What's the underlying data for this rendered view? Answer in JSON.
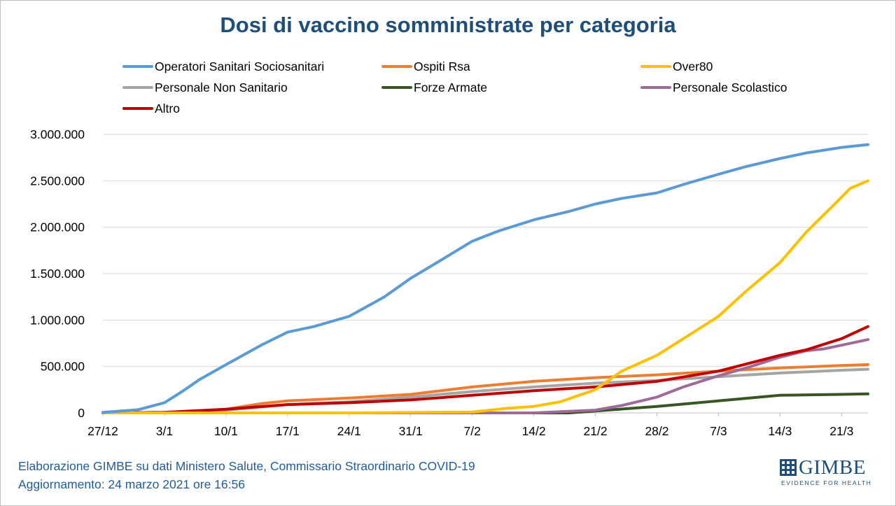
{
  "chart_data": {
    "type": "line",
    "title": "Dosi di vaccino somministrate per categoria",
    "xlabel": "",
    "ylabel": "",
    "x_start": "27/12",
    "x_end": "24/3",
    "x_tick_labels": [
      "27/12",
      "3/1",
      "10/1",
      "17/1",
      "24/1",
      "31/1",
      "7/2",
      "14/2",
      "21/2",
      "28/2",
      "7/3",
      "14/3",
      "21/3"
    ],
    "y_tick_labels": [
      "0",
      "500.000",
      "1.000.000",
      "1.500.000",
      "2.000.000",
      "2.500.000",
      "3.000.000"
    ],
    "ylim": [
      0,
      3000000
    ],
    "grid": "horizontal",
    "legend_position": "top",
    "series": [
      {
        "name": "Operatori Sanitari Sociosanitari",
        "color": "#5b9bd5",
        "x": [
          "27/12",
          "31/12",
          "3/1",
          "5/1",
          "7/1",
          "10/1",
          "14/1",
          "17/1",
          "20/1",
          "24/1",
          "28/1",
          "31/1",
          "3/2",
          "7/2",
          "10/2",
          "14/2",
          "18/2",
          "21/2",
          "24/2",
          "28/2",
          "3/3",
          "7/3",
          "10/3",
          "14/3",
          "17/3",
          "21/3",
          "24/3"
        ],
        "y": [
          5000,
          35000,
          110000,
          230000,
          360000,
          520000,
          730000,
          870000,
          930000,
          1040000,
          1250000,
          1450000,
          1620000,
          1850000,
          1960000,
          2080000,
          2170000,
          2250000,
          2310000,
          2370000,
          2460000,
          2570000,
          2650000,
          2740000,
          2800000,
          2860000,
          2890000
        ]
      },
      {
        "name": "Ospiti Rsa",
        "color": "#ed7d31",
        "x": [
          "27/12",
          "3/1",
          "10/1",
          "14/1",
          "17/1",
          "24/1",
          "31/1",
          "7/2",
          "14/2",
          "21/2",
          "28/2",
          "7/3",
          "14/3",
          "21/3",
          "24/3"
        ],
        "y": [
          0,
          5000,
          40000,
          100000,
          130000,
          160000,
          200000,
          280000,
          340000,
          380000,
          410000,
          450000,
          485000,
          510000,
          520000
        ]
      },
      {
        "name": "Over80",
        "color": "#ffc000",
        "x": [
          "27/12",
          "24/1",
          "7/2",
          "11/2",
          "14/2",
          "17/2",
          "21/2",
          "24/2",
          "28/2",
          "3/3",
          "7/3",
          "10/3",
          "14/3",
          "17/3",
          "20/3",
          "22/3",
          "24/3"
        ],
        "y": [
          0,
          0,
          10000,
          50000,
          70000,
          120000,
          250000,
          450000,
          620000,
          800000,
          1040000,
          1300000,
          1620000,
          1950000,
          2230000,
          2420000,
          2500000
        ]
      },
      {
        "name": "Personale Non Sanitario",
        "color": "#a5a5a5",
        "x": [
          "27/12",
          "3/1",
          "10/1",
          "17/1",
          "24/1",
          "31/1",
          "7/2",
          "14/2",
          "21/2",
          "28/2",
          "7/3",
          "14/3",
          "21/3",
          "24/3"
        ],
        "y": [
          0,
          5000,
          30000,
          90000,
          120000,
          170000,
          230000,
          280000,
          320000,
          350000,
          390000,
          430000,
          460000,
          470000
        ]
      },
      {
        "name": "Forze Armate",
        "color": "#375623",
        "x": [
          "27/12",
          "18/2",
          "21/2",
          "28/2",
          "7/3",
          "14/3",
          "21/3",
          "24/3"
        ],
        "y": [
          0,
          0,
          20000,
          70000,
          130000,
          190000,
          200000,
          205000
        ]
      },
      {
        "name": "Personale Scolastico",
        "color": "#9e6a97",
        "x": [
          "27/12",
          "14/2",
          "21/2",
          "24/2",
          "28/2",
          "3/3",
          "7/3",
          "10/3",
          "14/3",
          "17/3",
          "19/3",
          "21/3",
          "24/3"
        ],
        "y": [
          0,
          0,
          30000,
          80000,
          170000,
          280000,
          400000,
          480000,
          600000,
          670000,
          690000,
          730000,
          790000
        ]
      },
      {
        "name": "Altro",
        "color": "#c00000",
        "x": [
          "27/12",
          "3/1",
          "10/1",
          "17/1",
          "24/1",
          "31/1",
          "7/2",
          "14/2",
          "21/2",
          "28/2",
          "7/3",
          "14/3",
          "17/3",
          "21/3",
          "24/3"
        ],
        "y": [
          0,
          5000,
          40000,
          90000,
          110000,
          140000,
          190000,
          240000,
          280000,
          340000,
          450000,
          620000,
          680000,
          800000,
          930000
        ]
      }
    ]
  },
  "footer": {
    "line1": "Elaborazione GIMBE su dati Ministero Salute, Commissario Straordinario COVID-19",
    "line2": "Aggiornamento: 24 marzo 2021 ore 16:56"
  },
  "logo": {
    "name": "GIMBE",
    "tagline": "EVIDENCE FOR HEALTH"
  }
}
